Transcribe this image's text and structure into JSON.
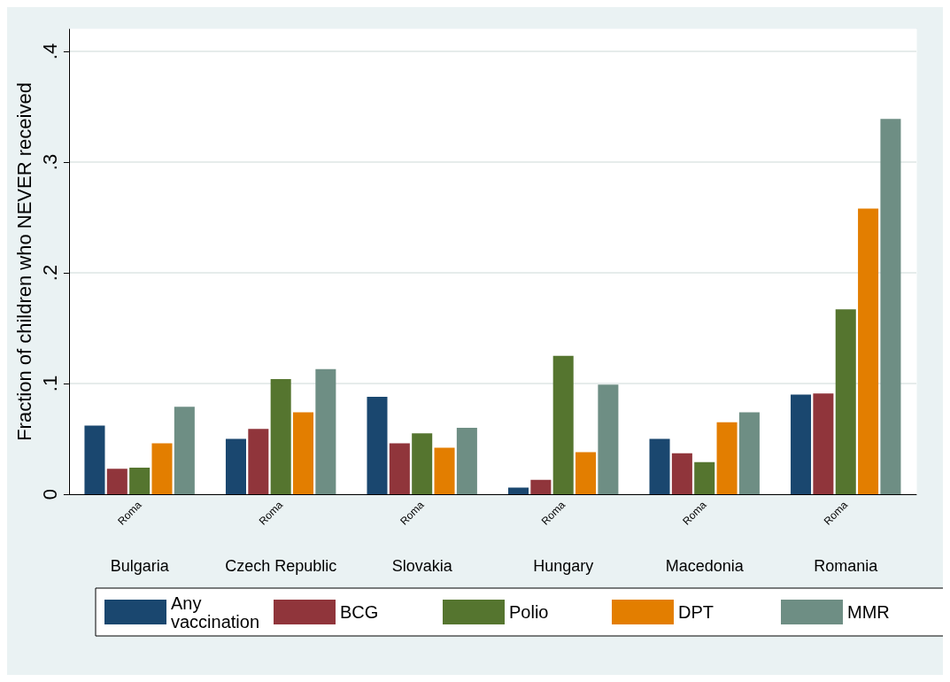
{
  "chart_data": {
    "type": "bar",
    "ylabel": "Fraction of children who NEVER received",
    "categories": [
      "Bulgaria",
      "Czech Republic",
      "Slovakia",
      "Hungary",
      "Macedonia",
      "Romania"
    ],
    "annotations": [
      "Roma",
      "Roma",
      "Roma",
      "Roma",
      "Roma",
      "Roma"
    ],
    "series": [
      {
        "name": "Any vaccination",
        "color": "#1a476f",
        "values": [
          0.062,
          0.05,
          0.088,
          0.006,
          0.05,
          0.09
        ]
      },
      {
        "name": "BCG",
        "color": "#90353b",
        "values": [
          0.023,
          0.059,
          0.046,
          0.013,
          0.037,
          0.091
        ]
      },
      {
        "name": "Polio",
        "color": "#55752f",
        "values": [
          0.024,
          0.104,
          0.055,
          0.125,
          0.029,
          0.167
        ]
      },
      {
        "name": "DPT",
        "color": "#e37e00",
        "values": [
          0.046,
          0.074,
          0.042,
          0.038,
          0.065,
          0.258
        ]
      },
      {
        "name": "MMR",
        "color": "#6e8e84",
        "values": [
          0.079,
          0.113,
          0.06,
          0.099,
          0.074,
          0.339
        ]
      }
    ],
    "ylim": [
      0,
      0.42
    ],
    "yticks": [
      0,
      {
        "value": 0.1,
        "label": ".1"
      },
      {
        "value": 0.2,
        "label": ".2"
      },
      {
        "value": 0.3,
        "label": ".3"
      },
      {
        "value": 0.4,
        "label": ".4"
      }
    ],
    "grid": "y",
    "legend": "bottom"
  }
}
